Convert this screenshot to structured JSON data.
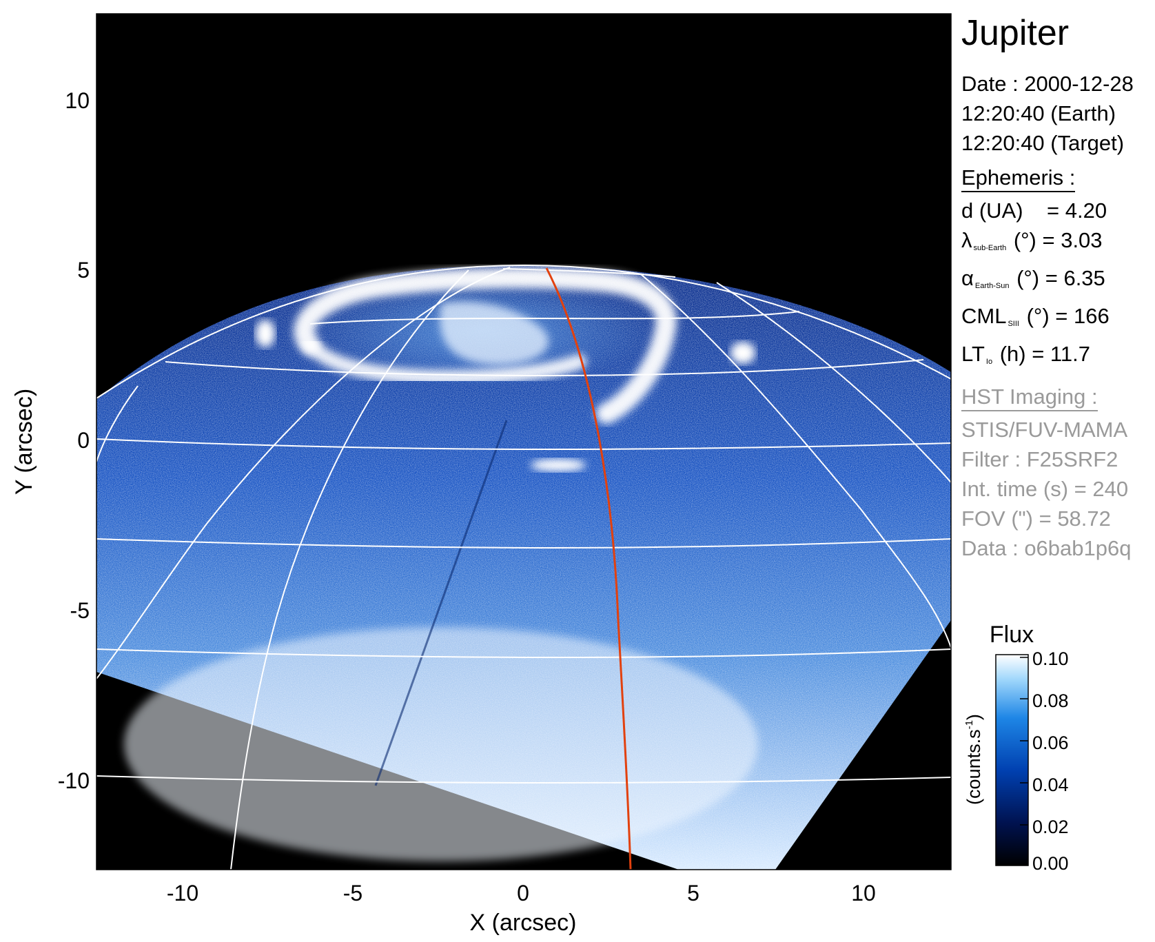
{
  "figure": {
    "xlabel": "X (arcsec)",
    "ylabel": "Y (arcsec)",
    "x_ticks": [
      "-10",
      "-5",
      "0",
      "5",
      "10"
    ],
    "y_ticks": [
      "10",
      "5",
      "0",
      "-5",
      "-10"
    ]
  },
  "info": {
    "title": "Jupiter",
    "date_line": "Date : 2000-12-28",
    "earth_time": "12:20:40 (Earth)",
    "target_time": "12:20:40 (Target)",
    "ephemeris_header": "Ephemeris :",
    "d_text": "d (UA)    = 4.20",
    "lat_symbol": "λ",
    "lat_sub": "sub-Earth",
    "lat_rest": "(°) = 3.03",
    "alpha_symbol": "α",
    "alpha_sub": "Earth-Sun",
    "alpha_rest": "(°) = 6.35",
    "cml_main": "CML",
    "cml_sub": "SIII",
    "cml_rest": "(°) = 166",
    "lt_main": "LT",
    "lt_sub": "Io",
    "lt_rest": "(h) = 11.7",
    "hst_header": "HST Imaging :",
    "instrument": "STIS/FUV-MAMA",
    "filter": "Filter : F25SRF2",
    "int_time": "Int. time (s) = 240",
    "fov": "FOV (\") = 58.72",
    "data_id": "Data : o6bab1p6q"
  },
  "colorbar": {
    "title": "Flux",
    "unit_label": "(counts.s",
    "unit_sup": "-1",
    "unit_close": ")",
    "ticks": [
      "0.10",
      "0.08",
      "0.06",
      "0.04",
      "0.02",
      "0.00"
    ],
    "colors": [
      "#000000",
      "#00124f",
      "#0040b0",
      "#1e86e6",
      "#9ed6fb",
      "#ffffff"
    ]
  },
  "colors": {
    "background": "#000000",
    "grid": "#ffffff",
    "meridian": "#e2410e"
  }
}
